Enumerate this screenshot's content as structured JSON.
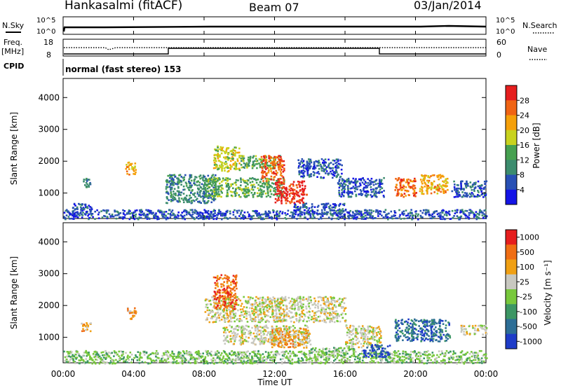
{
  "header": {
    "site": "Hankasalmi (fitACF)",
    "beam": "Beam 07",
    "date": "03/Jan/2014"
  },
  "noise_panel": {
    "left_label": "N.Sky",
    "left_ticks": [
      "10^5",
      "10^0"
    ],
    "right_label": "N.Search",
    "right_ticks": [
      "10^5",
      "10^0"
    ]
  },
  "freq_panel": {
    "left_label_line1": "Freq.",
    "left_label_line2": "[MHz]",
    "left_ticks": [
      "18",
      "8"
    ],
    "right_label": "Nave",
    "right_ticks": [
      "60",
      "0"
    ]
  },
  "cpid_panel": {
    "label": "CPID",
    "text": "normal (fast stereo) 153"
  },
  "x_axis": {
    "label": "Time UT",
    "ticks": [
      "00:00",
      "04:00",
      "08:00",
      "12:00",
      "16:00",
      "20:00",
      "00:00"
    ]
  },
  "chart_data": [
    {
      "type": "heatmap",
      "name": "power-panel",
      "ylabel": "Slant Range [km]",
      "y_ticks": [
        "1000",
        "2000",
        "3000",
        "4000"
      ],
      "ylim": [
        200,
        4600
      ],
      "xlim_hours": [
        0,
        24
      ],
      "colorbar": {
        "label": "Power [dB]",
        "ticks": [
          "4",
          "8",
          "12",
          "16",
          "20",
          "24",
          "28"
        ],
        "colors": [
          "#1414e6",
          "#2850b4",
          "#3c8c6e",
          "#46a050",
          "#c8d21e",
          "#f5a00a",
          "#f06414",
          "#e61e1e"
        ]
      },
      "clusters": [
        {
          "t0": 0.5,
          "t1": 1.6,
          "r0": 300,
          "r1": 700,
          "level": 1
        },
        {
          "t0": 1.1,
          "t1": 1.5,
          "r0": 1200,
          "r1": 1500,
          "level": 2
        },
        {
          "t0": 3.5,
          "t1": 4.1,
          "r0": 1600,
          "r1": 2000,
          "level": 5
        },
        {
          "t0": 5.8,
          "t1": 8.6,
          "r0": 700,
          "r1": 1600,
          "level": 2
        },
        {
          "t0": 8.0,
          "t1": 12.5,
          "r0": 900,
          "r1": 1500,
          "level": 3
        },
        {
          "t0": 8.5,
          "t1": 10.0,
          "r0": 1700,
          "r1": 2500,
          "level": 4
        },
        {
          "t0": 10.0,
          "t1": 12.3,
          "r0": 1800,
          "r1": 2200,
          "level": 3
        },
        {
          "t0": 11.2,
          "t1": 12.5,
          "r0": 1400,
          "r1": 2200,
          "level": 6
        },
        {
          "t0": 12.0,
          "t1": 13.8,
          "r0": 700,
          "r1": 1400,
          "level": 7
        },
        {
          "t0": 13.3,
          "t1": 15.8,
          "r0": 1500,
          "r1": 2100,
          "level": 1
        },
        {
          "t0": 13.0,
          "t1": 16.0,
          "r0": 350,
          "r1": 700,
          "level": 1
        },
        {
          "t0": 15.5,
          "t1": 18.2,
          "r0": 900,
          "r1": 1500,
          "level": 1
        },
        {
          "t0": 18.8,
          "t1": 20.0,
          "r0": 900,
          "r1": 1500,
          "level": 6
        },
        {
          "t0": 20.2,
          "t1": 21.8,
          "r0": 1000,
          "r1": 1600,
          "level": 5
        },
        {
          "t0": 22.0,
          "t1": 24.0,
          "r0": 900,
          "r1": 1400,
          "level": 1
        },
        {
          "t0": 0.0,
          "t1": 24.0,
          "r0": 200,
          "r1": 500,
          "level": 1
        }
      ]
    },
    {
      "type": "heatmap",
      "name": "velocity-panel",
      "ylabel": "Slant Range [km]",
      "y_ticks": [
        "1000",
        "2000",
        "3000",
        "4000"
      ],
      "ylim": [
        200,
        4600
      ],
      "xlim_hours": [
        0,
        24
      ],
      "colorbar": {
        "label": "Velocity [m s⁻¹]",
        "ticks": [
          "1000",
          "500",
          "100",
          "25",
          "-25",
          "-100",
          "-500",
          "-1000"
        ],
        "colors": [
          "#1e3cc8",
          "#2d6e96",
          "#3c9664",
          "#78c83c",
          "#c8c8c0",
          "#f0a014",
          "#f06e14",
          "#e61e1e"
        ]
      },
      "clusters": [
        {
          "t0": 0.0,
          "t1": 24.0,
          "r0": 200,
          "r1": 600,
          "level": 3
        },
        {
          "t0": 3.6,
          "t1": 4.1,
          "r0": 1600,
          "r1": 2000,
          "level": 5
        },
        {
          "t0": 1.0,
          "t1": 1.6,
          "r0": 1200,
          "r1": 1500,
          "level": 5
        },
        {
          "t0": 8.0,
          "t1": 16.0,
          "r0": 1500,
          "r1": 2300,
          "level": 4
        },
        {
          "t0": 9.0,
          "t1": 14.0,
          "r0": 800,
          "r1": 1400,
          "level": 4
        },
        {
          "t0": 8.5,
          "t1": 9.8,
          "r0": 1900,
          "r1": 3000,
          "level": 6
        },
        {
          "t0": 11.8,
          "t1": 13.8,
          "r0": 700,
          "r1": 1300,
          "level": 5
        },
        {
          "t0": 14.0,
          "t1": 16.5,
          "r0": 400,
          "r1": 700,
          "level": 3
        },
        {
          "t0": 16.0,
          "t1": 18.0,
          "r0": 700,
          "r1": 1400,
          "level": 4
        },
        {
          "t0": 18.8,
          "t1": 22.0,
          "r0": 900,
          "r1": 1600,
          "level": 1
        },
        {
          "t0": 22.5,
          "t1": 24.0,
          "r0": 1100,
          "r1": 1400,
          "level": 4
        },
        {
          "t0": 17.0,
          "t1": 18.5,
          "r0": 400,
          "r1": 800,
          "level": 0
        }
      ]
    }
  ]
}
